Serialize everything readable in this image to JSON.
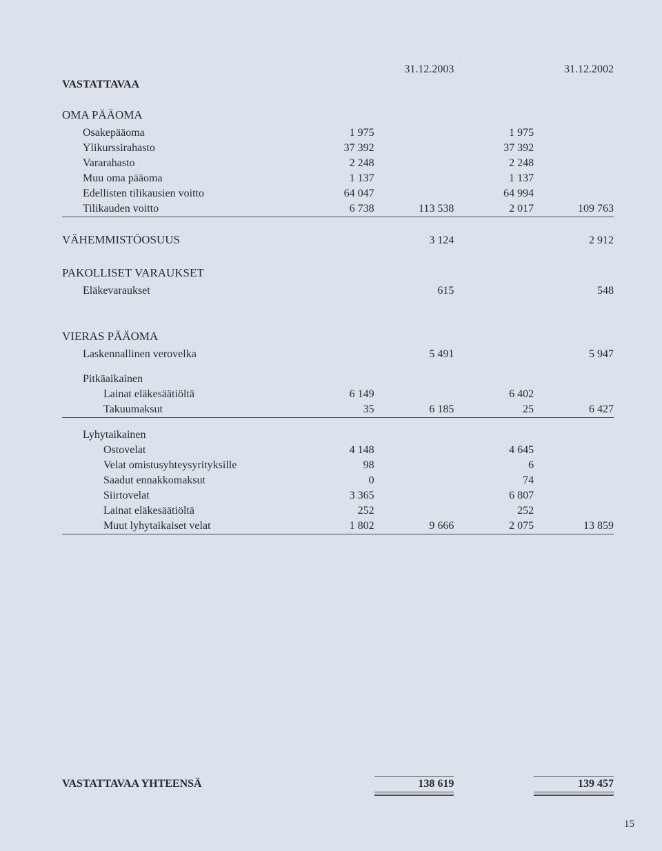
{
  "colors": {
    "background": "#dbe2ec",
    "text": "#2a2a2a",
    "rule": "#4a4a4a"
  },
  "typography": {
    "font_family": "Adobe Garamond Pro / Garamond / Georgia serif",
    "base_fontsize_pt": 12,
    "line_height": 22
  },
  "page_number": "15",
  "header": {
    "col2003": "31.12.2003",
    "col2002": "31.12.2002"
  },
  "title": "VASTATTAVAA",
  "sections": {
    "oma_paaoma": {
      "label": "OMA PÄÄOMA",
      "rows": [
        {
          "label": "Osakepääoma",
          "c1": "1 975",
          "c3": "1 975"
        },
        {
          "label": "Ylikurssirahasto",
          "c1": "37 392",
          "c3": "37 392"
        },
        {
          "label": "Vararahasto",
          "c1": "2 248",
          "c3": "2 248"
        },
        {
          "label": "Muu oma pääoma",
          "c1": "1 137",
          "c3": "1 137"
        },
        {
          "label": "Edellisten tilikausien voitto",
          "c1": "64 047",
          "c3": "64 994"
        },
        {
          "label": "Tilikauden voitto",
          "c1": "6 738",
          "c2": "113 538",
          "c3": "2 017",
          "c4": "109 763",
          "rule": true
        }
      ]
    },
    "vahemmistoosuus": {
      "label": "VÄHEMMISTÖOSUUS",
      "c2": "3 124",
      "c4": "2 912"
    },
    "pakolliset": {
      "label": "PAKOLLISET VARAUKSET",
      "rows": [
        {
          "label": "Eläkevaraukset",
          "c2": "615",
          "c4": "548"
        }
      ]
    },
    "vieras": {
      "label": "VIERAS PÄÄOMA",
      "laskennallinen": {
        "label": "Laskennallinen verovelka",
        "c2": "5 491",
        "c4": "5 947"
      },
      "pitkaaikainen": {
        "label": "Pitkäaikainen",
        "rows": [
          {
            "label": "Lainat eläkesäätiöltä",
            "c1": "6 149",
            "c3": "6 402"
          },
          {
            "label": "Takuumaksut",
            "c1": "35",
            "c2": "6 185",
            "c3": "25",
            "c4": "6 427",
            "rule": true
          }
        ]
      },
      "lyhytaikainen": {
        "label": "Lyhytaikainen",
        "rows": [
          {
            "label": "Ostovelat",
            "c1": "4 148",
            "c3": "4 645"
          },
          {
            "label": "Velat omistusyhteysyrityksille",
            "c1": "98",
            "c3": "6"
          },
          {
            "label": "Saadut ennakkomaksut",
            "c1": "0",
            "c3": "74"
          },
          {
            "label": "Siirtovelat",
            "c1": "3 365",
            "c3": "6 807"
          },
          {
            "label": "Lainat eläkesäätiöltä",
            "c1": "252",
            "c3": "252"
          },
          {
            "label": "Muut lyhytaikaiset velat",
            "c1": "1 802",
            "c2": "9 666",
            "c3": "2 075",
            "c4": "13 859",
            "rule": true
          }
        ]
      }
    },
    "total": {
      "label": "VASTATTAVAA YHTEENSÄ",
      "c2": "138 619",
      "c4": "139 457"
    }
  }
}
